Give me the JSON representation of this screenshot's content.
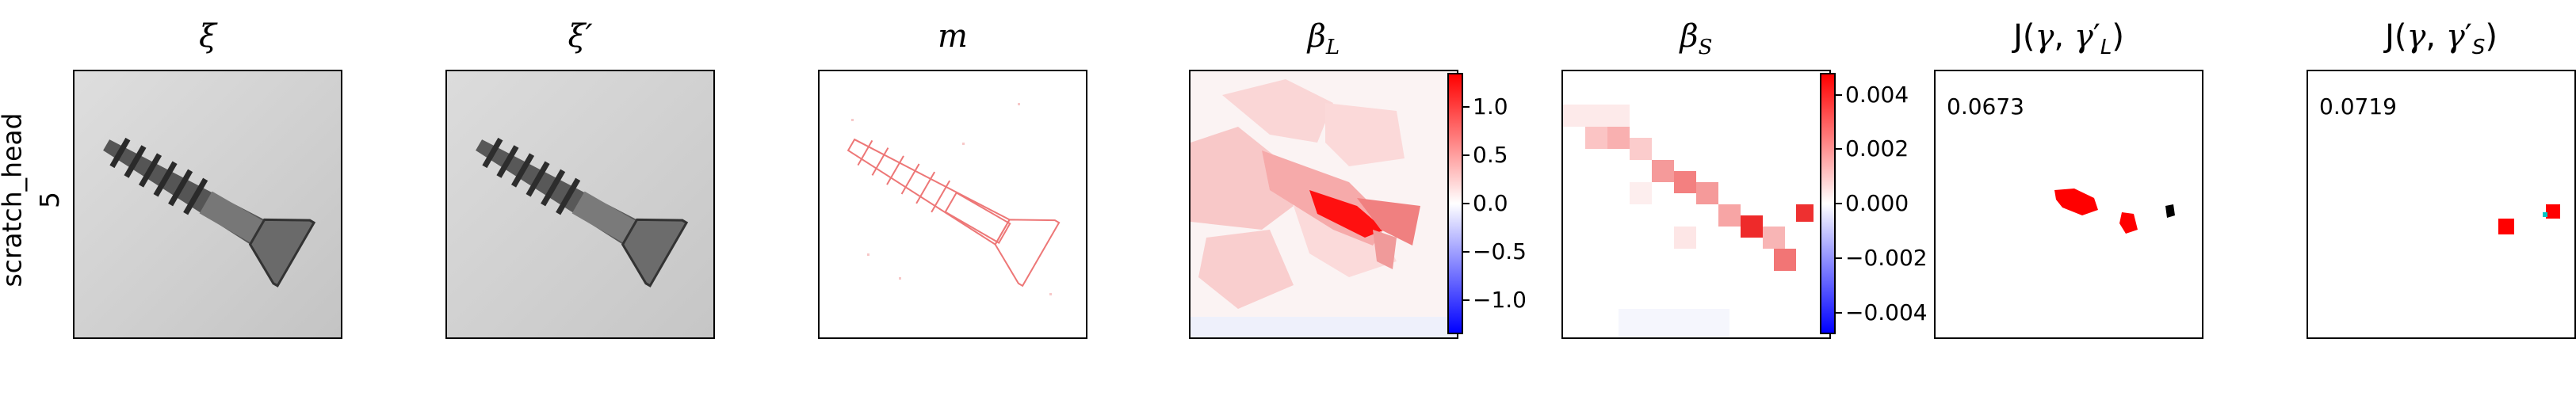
{
  "row_label": {
    "category": "scratch_head",
    "index": "5"
  },
  "titles": {
    "xi": "ξ",
    "xi_prime": "ξ′",
    "m": "m",
    "beta_L": "βL",
    "beta_S": "βS",
    "J_L": "J(γ, γ′L)",
    "J_S": "J(γ, γ′S)"
  },
  "colorbar_L": {
    "ticks": [
      "1.0",
      "0.5",
      "0.0",
      "−0.5",
      "−1.0"
    ],
    "range": [
      -1.35,
      1.35
    ],
    "values": [
      1.0,
      0.5,
      0.0,
      -0.5,
      -1.0
    ]
  },
  "colorbar_S": {
    "ticks": [
      "0.004",
      "0.002",
      "0.000",
      "−0.002",
      "−0.004"
    ],
    "range": [
      -0.0048,
      0.0048
    ],
    "values": [
      0.004,
      0.002,
      0.0,
      -0.002,
      -0.004
    ]
  },
  "scores": {
    "J_L": "0.0673",
    "J_S": "0.0719"
  },
  "colors": {
    "positive": "#ff0000",
    "negative": "#0000ff",
    "match": "#000000",
    "alt": "#00c8c8"
  }
}
